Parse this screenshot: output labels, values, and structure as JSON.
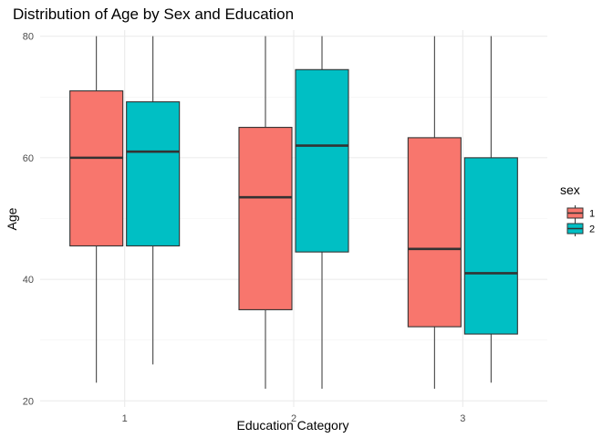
{
  "chart_data": {
    "type": "boxplot",
    "title": "Distribution of Age by Sex and Education",
    "xlabel": "Education Category",
    "ylabel": "Age",
    "categories": [
      "1",
      "2",
      "3"
    ],
    "ylim": [
      19,
      81
    ],
    "yticks": [
      20,
      40,
      60,
      80
    ],
    "grid": true,
    "legend": {
      "title": "sex",
      "position": "right",
      "entries": [
        {
          "label": "1",
          "color": "#F8766D"
        },
        {
          "label": "2",
          "color": "#00BFC4"
        }
      ]
    },
    "series": [
      {
        "name": "1",
        "color": "#F8766D",
        "boxes": [
          {
            "min": 23,
            "q1": 45.5,
            "median": 60,
            "q3": 71,
            "max": 80
          },
          {
            "min": 22,
            "q1": 35,
            "median": 53.5,
            "q3": 65,
            "max": 80
          },
          {
            "min": 22,
            "q1": 32.2,
            "median": 45,
            "q3": 63.3,
            "max": 80
          }
        ]
      },
      {
        "name": "2",
        "color": "#00BFC4",
        "boxes": [
          {
            "min": 26,
            "q1": 45.5,
            "median": 61,
            "q3": 69.2,
            "max": 80
          },
          {
            "min": 22,
            "q1": 44.5,
            "median": 62,
            "q3": 74.5,
            "max": 80
          },
          {
            "min": 23,
            "q1": 31,
            "median": 41,
            "q3": 60,
            "max": 80
          }
        ]
      }
    ]
  }
}
